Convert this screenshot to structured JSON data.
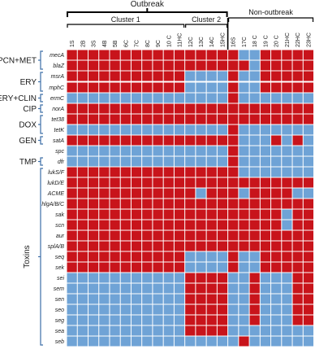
{
  "chart_data": {
    "type": "heatmap",
    "headers": {
      "outbreak": "Outbreak",
      "non_outbreak": "Non-outbreak"
    },
    "clusters": [
      {
        "label": "Cluster 1",
        "first": "1S",
        "last": "11HC"
      },
      {
        "label": "Cluster 2",
        "first": "12C",
        "last": "15HC"
      }
    ],
    "outbreak_group": {
      "first": "1S",
      "last": "15HC"
    },
    "non_outbreak_group": {
      "first": "16S",
      "last": "23HC"
    },
    "strains": [
      "1S",
      "2B",
      "3S",
      "4B",
      "5B",
      "6C",
      "7C",
      "8C",
      "9C",
      "10 C",
      "11HC",
      "12C",
      "13C",
      "14C",
      "15HC",
      "16S",
      "17C",
      "18 C",
      "19 C",
      "20 C",
      "21HC",
      "22HC",
      "23HC"
    ],
    "genes": [
      "mecA",
      "blaZ",
      "msrA",
      "mphC",
      "ermC",
      "norA",
      "tet38",
      "tetK",
      "satA",
      "spc",
      "dfr",
      "lukS/F",
      "lukD/E",
      "ACME",
      "hlgA/B/C",
      "sak",
      "scn",
      "aur",
      "splA/B",
      "seq",
      "sek",
      "sei",
      "sem",
      "sen",
      "seo",
      "seg",
      "sea",
      "seb"
    ],
    "categories": [
      {
        "label": "PCN+MET",
        "genes": [
          "mecA",
          "blaZ"
        ]
      },
      {
        "label": "ERY",
        "genes": [
          "msrA",
          "mphC"
        ]
      },
      {
        "label": "ERY+CLIN",
        "genes": [
          "ermC"
        ]
      },
      {
        "label": "CIP",
        "genes": [
          "norA"
        ]
      },
      {
        "label": "DOX",
        "genes": [
          "tet38",
          "tetK"
        ]
      },
      {
        "label": "GEN",
        "genes": [
          "satA"
        ]
      },
      {
        "label": "TMP",
        "genes": [
          "dfr"
        ]
      },
      {
        "label": "Toxins",
        "genes": [
          "lukS/F",
          "lukD/E",
          "ACME",
          "hlgA/B/C",
          "sak",
          "scn",
          "aur",
          "splA/B",
          "seq",
          "sek",
          "sei",
          "sem",
          "sen",
          "seo",
          "seg",
          "sea",
          "seb"
        ]
      }
    ],
    "values": [
      [
        1,
        1,
        1,
        1,
        1,
        1,
        1,
        1,
        1,
        1,
        1,
        1,
        1,
        1,
        1,
        1,
        0,
        0,
        1,
        1,
        1,
        1,
        1
      ],
      [
        1,
        1,
        1,
        1,
        1,
        1,
        1,
        1,
        1,
        1,
        1,
        1,
        1,
        1,
        1,
        1,
        1,
        0,
        1,
        1,
        1,
        1,
        1
      ],
      [
        1,
        1,
        1,
        1,
        1,
        1,
        1,
        1,
        1,
        1,
        1,
        0,
        0,
        0,
        0,
        1,
        0,
        0,
        1,
        1,
        1,
        1,
        1
      ],
      [
        1,
        1,
        1,
        1,
        1,
        1,
        1,
        1,
        1,
        1,
        1,
        0,
        0,
        0,
        0,
        1,
        0,
        0,
        1,
        1,
        1,
        1,
        1
      ],
      [
        0,
        0,
        0,
        0,
        0,
        0,
        0,
        0,
        0,
        0,
        0,
        0,
        0,
        0,
        0,
        1,
        0,
        0,
        0,
        0,
        0,
        0,
        0
      ],
      [
        1,
        1,
        1,
        1,
        1,
        1,
        1,
        1,
        1,
        1,
        1,
        1,
        1,
        1,
        1,
        1,
        1,
        1,
        1,
        1,
        1,
        1,
        1
      ],
      [
        1,
        1,
        1,
        1,
        1,
        1,
        1,
        1,
        1,
        1,
        1,
        1,
        1,
        1,
        1,
        1,
        1,
        1,
        1,
        1,
        1,
        1,
        1
      ],
      [
        0,
        0,
        0,
        0,
        0,
        0,
        0,
        0,
        0,
        0,
        0,
        0,
        0,
        0,
        0,
        1,
        0,
        0,
        0,
        0,
        0,
        0,
        0
      ],
      [
        1,
        1,
        1,
        1,
        1,
        1,
        1,
        1,
        1,
        1,
        1,
        1,
        1,
        1,
        1,
        1,
        0,
        0,
        0,
        1,
        0,
        1,
        0
      ],
      [
        0,
        0,
        0,
        0,
        0,
        0,
        0,
        0,
        0,
        0,
        0,
        0,
        0,
        0,
        0,
        1,
        0,
        0,
        0,
        0,
        0,
        0,
        0
      ],
      [
        0,
        0,
        0,
        0,
        0,
        0,
        0,
        0,
        0,
        0,
        0,
        0,
        0,
        0,
        0,
        1,
        0,
        0,
        0,
        0,
        0,
        0,
        0
      ],
      [
        1,
        1,
        1,
        1,
        1,
        1,
        1,
        1,
        1,
        1,
        1,
        1,
        1,
        1,
        1,
        1,
        0,
        0,
        0,
        0,
        0,
        0,
        0
      ],
      [
        1,
        1,
        1,
        1,
        1,
        1,
        1,
        1,
        1,
        1,
        1,
        1,
        1,
        1,
        1,
        1,
        1,
        1,
        1,
        1,
        1,
        1,
        1
      ],
      [
        1,
        1,
        1,
        1,
        1,
        1,
        1,
        1,
        1,
        1,
        1,
        1,
        0,
        1,
        1,
        1,
        0,
        1,
        1,
        1,
        1,
        0,
        0
      ],
      [
        1,
        1,
        1,
        1,
        1,
        1,
        1,
        1,
        1,
        1,
        1,
        1,
        1,
        1,
        1,
        1,
        1,
        1,
        1,
        1,
        1,
        1,
        1
      ],
      [
        1,
        1,
        1,
        1,
        1,
        1,
        1,
        1,
        1,
        1,
        1,
        1,
        1,
        1,
        1,
        1,
        1,
        1,
        1,
        1,
        0,
        1,
        1
      ],
      [
        1,
        1,
        1,
        1,
        1,
        1,
        1,
        1,
        1,
        1,
        1,
        1,
        1,
        1,
        1,
        1,
        1,
        1,
        1,
        1,
        0,
        1,
        1
      ],
      [
        1,
        1,
        1,
        1,
        1,
        1,
        1,
        1,
        1,
        1,
        1,
        1,
        1,
        1,
        1,
        1,
        1,
        1,
        1,
        1,
        1,
        1,
        1
      ],
      [
        1,
        1,
        1,
        1,
        1,
        1,
        1,
        1,
        1,
        1,
        1,
        1,
        1,
        1,
        1,
        1,
        1,
        1,
        1,
        1,
        1,
        1,
        1
      ],
      [
        1,
        1,
        1,
        1,
        1,
        1,
        1,
        1,
        1,
        1,
        1,
        0,
        0,
        0,
        0,
        1,
        0,
        0,
        1,
        1,
        1,
        1,
        1
      ],
      [
        1,
        1,
        1,
        1,
        1,
        1,
        1,
        1,
        1,
        1,
        1,
        0,
        0,
        0,
        0,
        1,
        0,
        0,
        1,
        1,
        1,
        1,
        1
      ],
      [
        0,
        0,
        0,
        0,
        0,
        0,
        0,
        0,
        0,
        0,
        0,
        1,
        1,
        1,
        1,
        0,
        0,
        1,
        0,
        0,
        0,
        1,
        1
      ],
      [
        0,
        0,
        0,
        0,
        0,
        0,
        0,
        0,
        0,
        0,
        0,
        1,
        1,
        1,
        1,
        0,
        0,
        1,
        0,
        0,
        0,
        1,
        1
      ],
      [
        0,
        0,
        0,
        0,
        0,
        0,
        0,
        0,
        0,
        0,
        0,
        1,
        1,
        1,
        1,
        0,
        0,
        1,
        0,
        0,
        0,
        1,
        1
      ],
      [
        0,
        0,
        0,
        0,
        0,
        0,
        0,
        0,
        0,
        0,
        0,
        1,
        1,
        1,
        1,
        0,
        0,
        1,
        0,
        0,
        0,
        1,
        1
      ],
      [
        0,
        0,
        0,
        0,
        0,
        0,
        0,
        0,
        0,
        0,
        0,
        1,
        1,
        1,
        1,
        0,
        0,
        1,
        0,
        0,
        0,
        1,
        1
      ],
      [
        0,
        0,
        0,
        0,
        0,
        0,
        0,
        0,
        0,
        0,
        0,
        1,
        1,
        1,
        1,
        0,
        0,
        0,
        0,
        0,
        0,
        0,
        0
      ],
      [
        0,
        0,
        0,
        0,
        0,
        0,
        0,
        0,
        0,
        0,
        0,
        0,
        0,
        0,
        0,
        0,
        1,
        0,
        0,
        0,
        0,
        0,
        0
      ]
    ],
    "colors": {
      "present": "#c8141b",
      "absent": "#6fa3d6",
      "grid": "#ffffff",
      "bracket": "#000000"
    },
    "legend": "none",
    "grid": true
  }
}
